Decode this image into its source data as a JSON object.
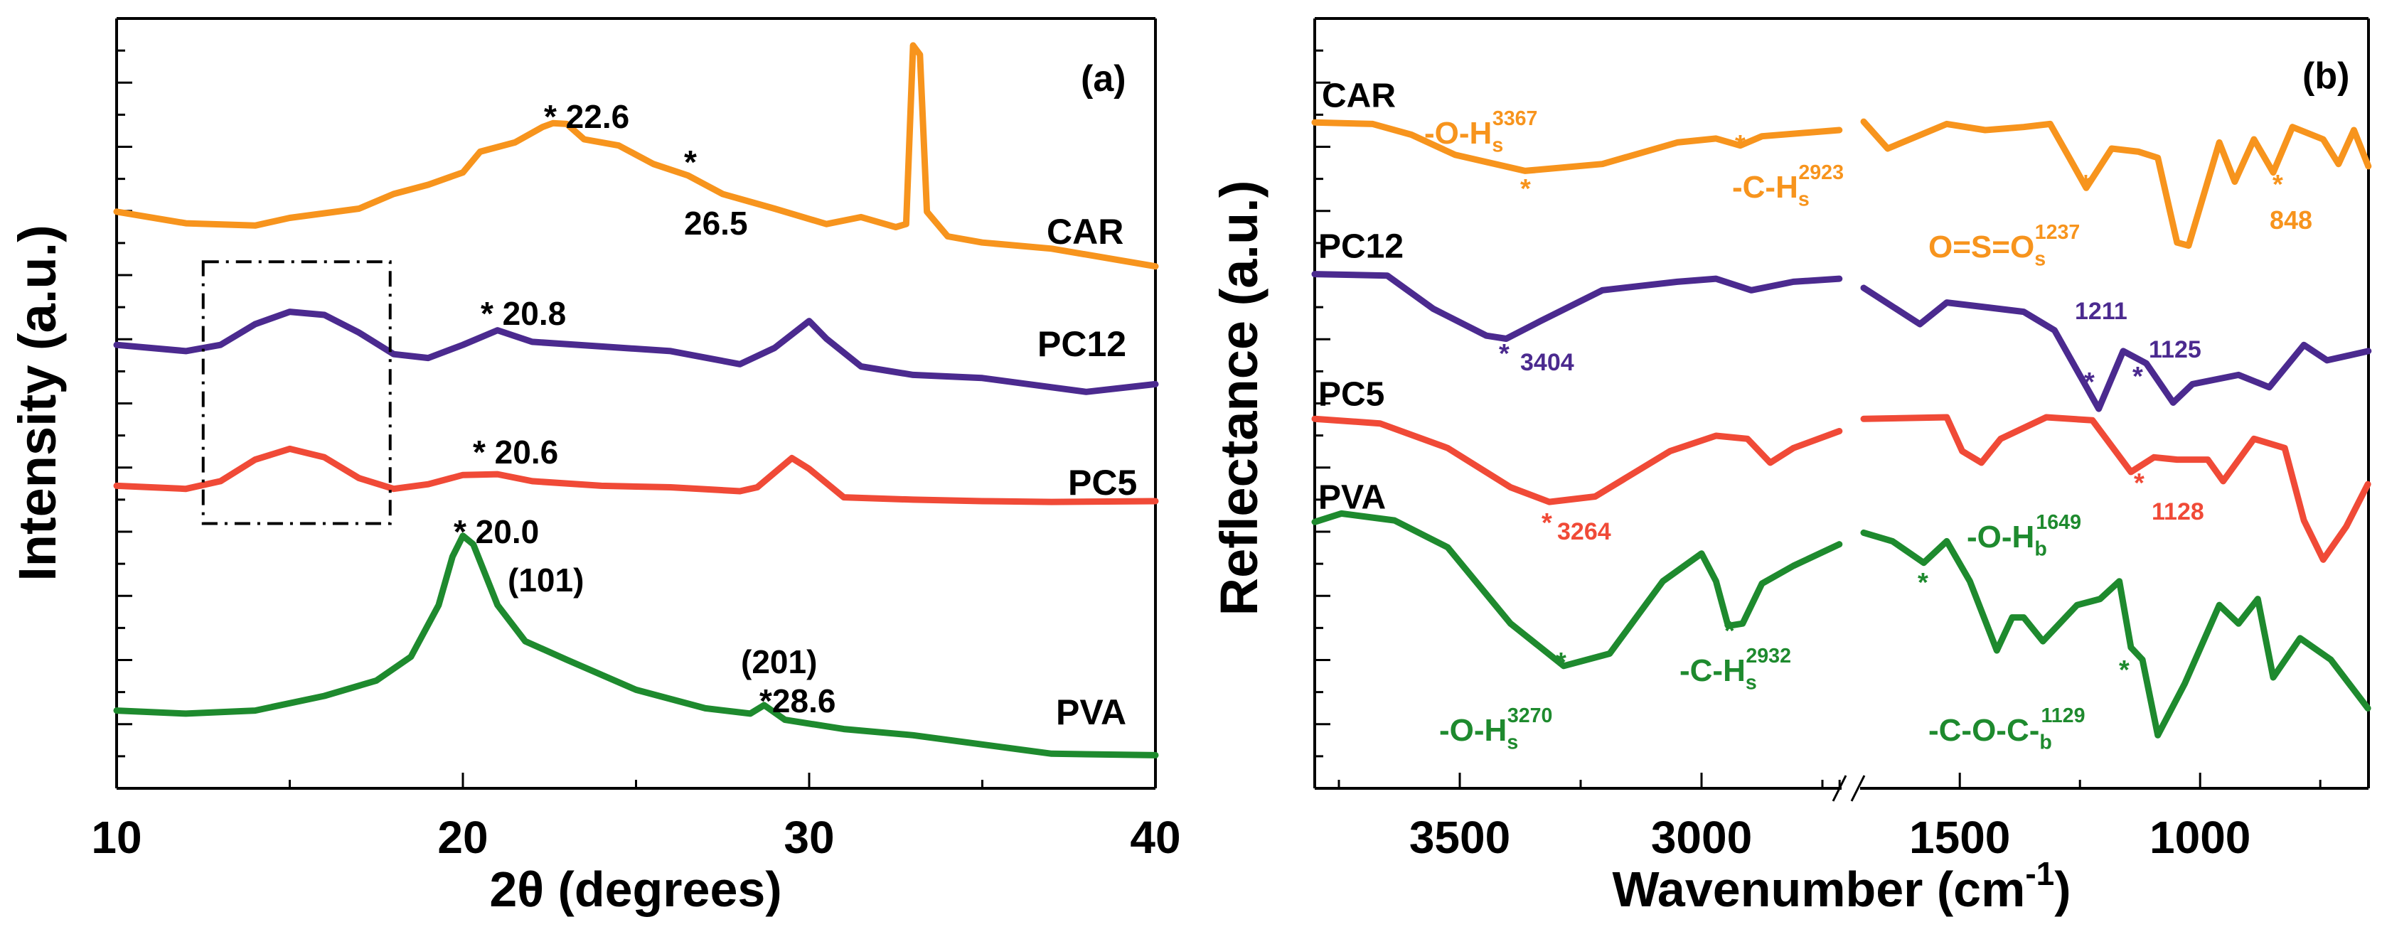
{
  "chart_data": [
    {
      "type": "line",
      "panel_label": "(a)",
      "xlabel": "2θ (degrees)",
      "ylabel": "Intensity (a.u.)",
      "xlim": [
        10,
        40
      ],
      "ylim": [
        0,
        100
      ],
      "xticks": [
        10,
        20,
        30,
        40
      ],
      "xtick_labels": [
        "10",
        "20",
        "30",
        "40"
      ],
      "grid": false,
      "highlight_box": {
        "style": "dash-dot",
        "x": [
          12.5,
          17.9
        ],
        "y": [
          34.4,
          68.4
        ]
      },
      "series": [
        {
          "name": "CAR",
          "color": "#f7941d",
          "x": [
            10,
            12,
            14,
            15,
            17,
            18,
            19,
            20,
            20.5,
            21.5,
            22.3,
            22.6,
            23,
            23.5,
            24.5,
            25.5,
            26.5,
            27.5,
            29,
            30.5,
            31.5,
            32.5,
            32.8,
            33,
            33.2,
            33.4,
            34,
            35,
            37,
            40
          ],
          "y": [
            74.9,
            73.4,
            73.1,
            74.1,
            75.3,
            77.2,
            78.4,
            80.0,
            82.7,
            83.9,
            85.9,
            86.4,
            86.3,
            84.3,
            83.5,
            81.1,
            79.6,
            77.2,
            75.3,
            73.3,
            74.2,
            72.9,
            73.3,
            96.5,
            95.3,
            74.9,
            71.7,
            70.9,
            70.1,
            67.8
          ]
        },
        {
          "name": "PC12",
          "color": "#4b2a8f",
          "x": [
            10,
            12,
            13,
            14,
            15,
            16,
            17,
            18,
            19,
            20,
            21,
            22,
            24,
            26,
            28,
            29,
            30,
            30.5,
            31.5,
            33,
            35,
            37,
            38,
            40
          ],
          "y": [
            57.6,
            56.8,
            57.6,
            60.3,
            61.9,
            61.5,
            59.2,
            56.4,
            55.9,
            57.6,
            59.5,
            58.0,
            57.4,
            56.8,
            55.1,
            57.2,
            60.7,
            58.4,
            54.8,
            53.7,
            53.3,
            52.1,
            51.5,
            52.5
          ]
        },
        {
          "name": "PC5",
          "color": "#f04a37",
          "x": [
            10,
            12,
            13,
            14,
            15,
            16,
            17,
            18,
            19,
            20,
            21,
            22,
            24,
            26,
            28,
            28.5,
            29.5,
            30,
            31,
            33,
            35,
            37,
            40
          ],
          "y": [
            39.3,
            38.9,
            39.9,
            42.7,
            44.1,
            43.0,
            40.3,
            38.9,
            39.5,
            40.7,
            40.8,
            39.9,
            39.3,
            39.1,
            38.6,
            39.1,
            42.9,
            41.5,
            37.8,
            37.5,
            37.3,
            37.2,
            37.3
          ]
        },
        {
          "name": "PVA",
          "color": "#1e8a2e",
          "x": [
            10,
            12,
            14,
            16,
            17.5,
            18.5,
            19.3,
            19.7,
            20,
            20.3,
            21,
            21.8,
            23,
            25,
            27,
            28.3,
            28.7,
            29.3,
            31,
            33,
            35,
            37,
            40
          ],
          "y": [
            10.1,
            9.7,
            10.1,
            12.0,
            14.0,
            17.1,
            23.8,
            30.1,
            32.8,
            31.7,
            23.8,
            19.1,
            16.7,
            12.8,
            10.4,
            9.7,
            10.8,
            8.9,
            7.7,
            6.9,
            5.7,
            4.5,
            4.3
          ]
        }
      ],
      "annotations": [
        {
          "text": "* 22.6",
          "series": "CAR"
        },
        {
          "text": "*",
          "series": "CAR"
        },
        {
          "text": "26.5",
          "series": "CAR"
        },
        {
          "text": "* 20.8",
          "series": "PC12"
        },
        {
          "text": "* 20.6",
          "series": "PC5"
        },
        {
          "text": "* 20.0",
          "series": "PVA"
        },
        {
          "text": "(101)",
          "series": "PVA"
        },
        {
          "text": "(201)",
          "series": "PVA"
        },
        {
          "text": "*28.6",
          "series": "PVA"
        }
      ]
    },
    {
      "type": "line",
      "panel_label": "(b)",
      "xlabel": "Wavenumber (cm",
      "xlabel_sup": "-1",
      "xlabel_end": ")",
      "ylabel": "Reflectance (a.u.)",
      "xlim": [
        3800,
        650
      ],
      "axis_break": {
        "from": 2700,
        "to": 1700
      },
      "ylim": [
        0,
        100
      ],
      "xticks": [
        3500,
        3000,
        1500,
        1000
      ],
      "xtick_labels": [
        "3500",
        "3000",
        "1500",
        "1000"
      ],
      "grid": false,
      "series": [
        {
          "name": "CAR",
          "color": "#f7941d",
          "x": [
            3800,
            3680,
            3600,
            3510,
            3365,
            3205,
            3050,
            2970,
            2920,
            2875,
            2715,
            1700,
            1650,
            1527,
            1447,
            1367,
            1312,
            1272,
            1237,
            1184,
            1128,
            1088,
            1048,
            1024,
            960,
            928,
            888,
            848,
            808,
            744,
            712,
            680,
            650
          ],
          "y": [
            86.5,
            86.3,
            84.9,
            82.3,
            80.2,
            81.1,
            83.9,
            84.4,
            83.5,
            84.7,
            85.5,
            86.6,
            83.1,
            86.3,
            85.5,
            85.9,
            86.3,
            81.9,
            78.0,
            83.1,
            82.7,
            81.9,
            70.9,
            70.5,
            83.9,
            78.8,
            84.3,
            80.0,
            85.9,
            84.3,
            81.1,
            85.5,
            80.8
          ]
        },
        {
          "name": "PC12",
          "color": "#4b2a8f",
          "x": [
            3800,
            3650,
            3555,
            3445,
            3404,
            3333,
            3205,
            3050,
            2970,
            2897,
            2810,
            2715,
            1700,
            1583,
            1527,
            1367,
            1303,
            1211,
            1160,
            1112,
            1056,
            1016,
            920,
            856,
            784,
            736,
            650
          ],
          "y": [
            66.8,
            66.6,
            62.3,
            58.8,
            58.4,
            60.7,
            64.7,
            65.8,
            66.2,
            64.7,
            65.8,
            66.2,
            65.0,
            60.3,
            63.1,
            61.9,
            59.5,
            49.3,
            56.8,
            55.2,
            50.1,
            52.5,
            53.7,
            52.1,
            57.6,
            55.6,
            56.8
          ]
        },
        {
          "name": "PC5",
          "color": "#f04a37",
          "x": [
            3800,
            3665,
            3525,
            3395,
            3315,
            3220,
            3065,
            2970,
            2905,
            2858,
            2810,
            2715,
            1700,
            1527,
            1495,
            1455,
            1415,
            1320,
            1224,
            1144,
            1096,
            1048,
            984,
            952,
            888,
            824,
            784,
            744,
            696,
            651
          ],
          "y": [
            48.0,
            47.4,
            44.2,
            39.1,
            37.2,
            37.9,
            43.8,
            45.8,
            45.4,
            42.3,
            44.2,
            46.4,
            48.0,
            48.2,
            43.8,
            42.3,
            45.4,
            48.2,
            47.8,
            41.1,
            43.0,
            42.7,
            42.7,
            39.9,
            45.4,
            44.2,
            34.8,
            29.7,
            34.0,
            39.5
          ]
        },
        {
          "name": "PVA",
          "color": "#1e8a2e",
          "x": [
            3800,
            3745,
            3635,
            3525,
            3395,
            3285,
            3190,
            3080,
            3000,
            2970,
            2945,
            2915,
            2875,
            2810,
            2715,
            1700,
            1640,
            1575,
            1527,
            1479,
            1423,
            1391,
            1367,
            1327,
            1256,
            1208,
            1168,
            1144,
            1120,
            1088,
            1032,
            960,
            920,
            880,
            848,
            792,
            728,
            651
          ],
          "y": [
            34.6,
            35.7,
            34.8,
            31.3,
            21.4,
            15.9,
            17.5,
            26.9,
            30.5,
            26.9,
            21.1,
            21.4,
            26.6,
            28.9,
            31.7,
            33.2,
            32.1,
            29.3,
            32.1,
            26.9,
            17.9,
            22.2,
            22.2,
            19.1,
            23.8,
            24.6,
            26.9,
            18.3,
            16.7,
            6.9,
            13.6,
            23.8,
            21.4,
            24.6,
            14.4,
            19.5,
            16.7,
            10.4
          ]
        }
      ],
      "annotations": [
        {
          "text": "-O-H",
          "sub": "s",
          "sup": "3367",
          "series": "CAR"
        },
        {
          "text": "*",
          "series": "CAR"
        },
        {
          "text": "*",
          "series": "CAR"
        },
        {
          "text": "-C-H",
          "sub": "s",
          "sup": "2923",
          "series": "CAR"
        },
        {
          "text": "O=S=O",
          "sub": "s",
          "sup": "1237",
          "series": "CAR"
        },
        {
          "text": "*",
          "series": "CAR"
        },
        {
          "text": "*",
          "series": "CAR"
        },
        {
          "text": "848",
          "series": "CAR"
        },
        {
          "text": "*",
          "series": "PC12"
        },
        {
          "text": "3404",
          "series": "PC12"
        },
        {
          "text": "1211",
          "series": "PC12"
        },
        {
          "text": "*",
          "series": "PC12"
        },
        {
          "text": "*",
          "series": "PC12"
        },
        {
          "text": "1125",
          "series": "PC12"
        },
        {
          "text": "*",
          "series": "PC5"
        },
        {
          "text": "3264",
          "series": "PC5"
        },
        {
          "text": "*",
          "series": "PC5"
        },
        {
          "text": "1128",
          "series": "PC5"
        },
        {
          "text": "*",
          "series": "PVA"
        },
        {
          "text": "-O-H",
          "sub": "s",
          "sup": "3270",
          "series": "PVA"
        },
        {
          "text": "*",
          "series": "PVA"
        },
        {
          "text": "-C-H",
          "sub": "s",
          "sup": "2932",
          "series": "PVA"
        },
        {
          "text": "*",
          "series": "PVA"
        },
        {
          "text": "-O-H",
          "sub": "b",
          "sup": "1649",
          "series": "PVA"
        },
        {
          "text": "*",
          "series": "PVA"
        },
        {
          "text": "-C-O-C-",
          "sub": "b",
          "sup": "1129",
          "series": "PVA"
        }
      ]
    }
  ]
}
